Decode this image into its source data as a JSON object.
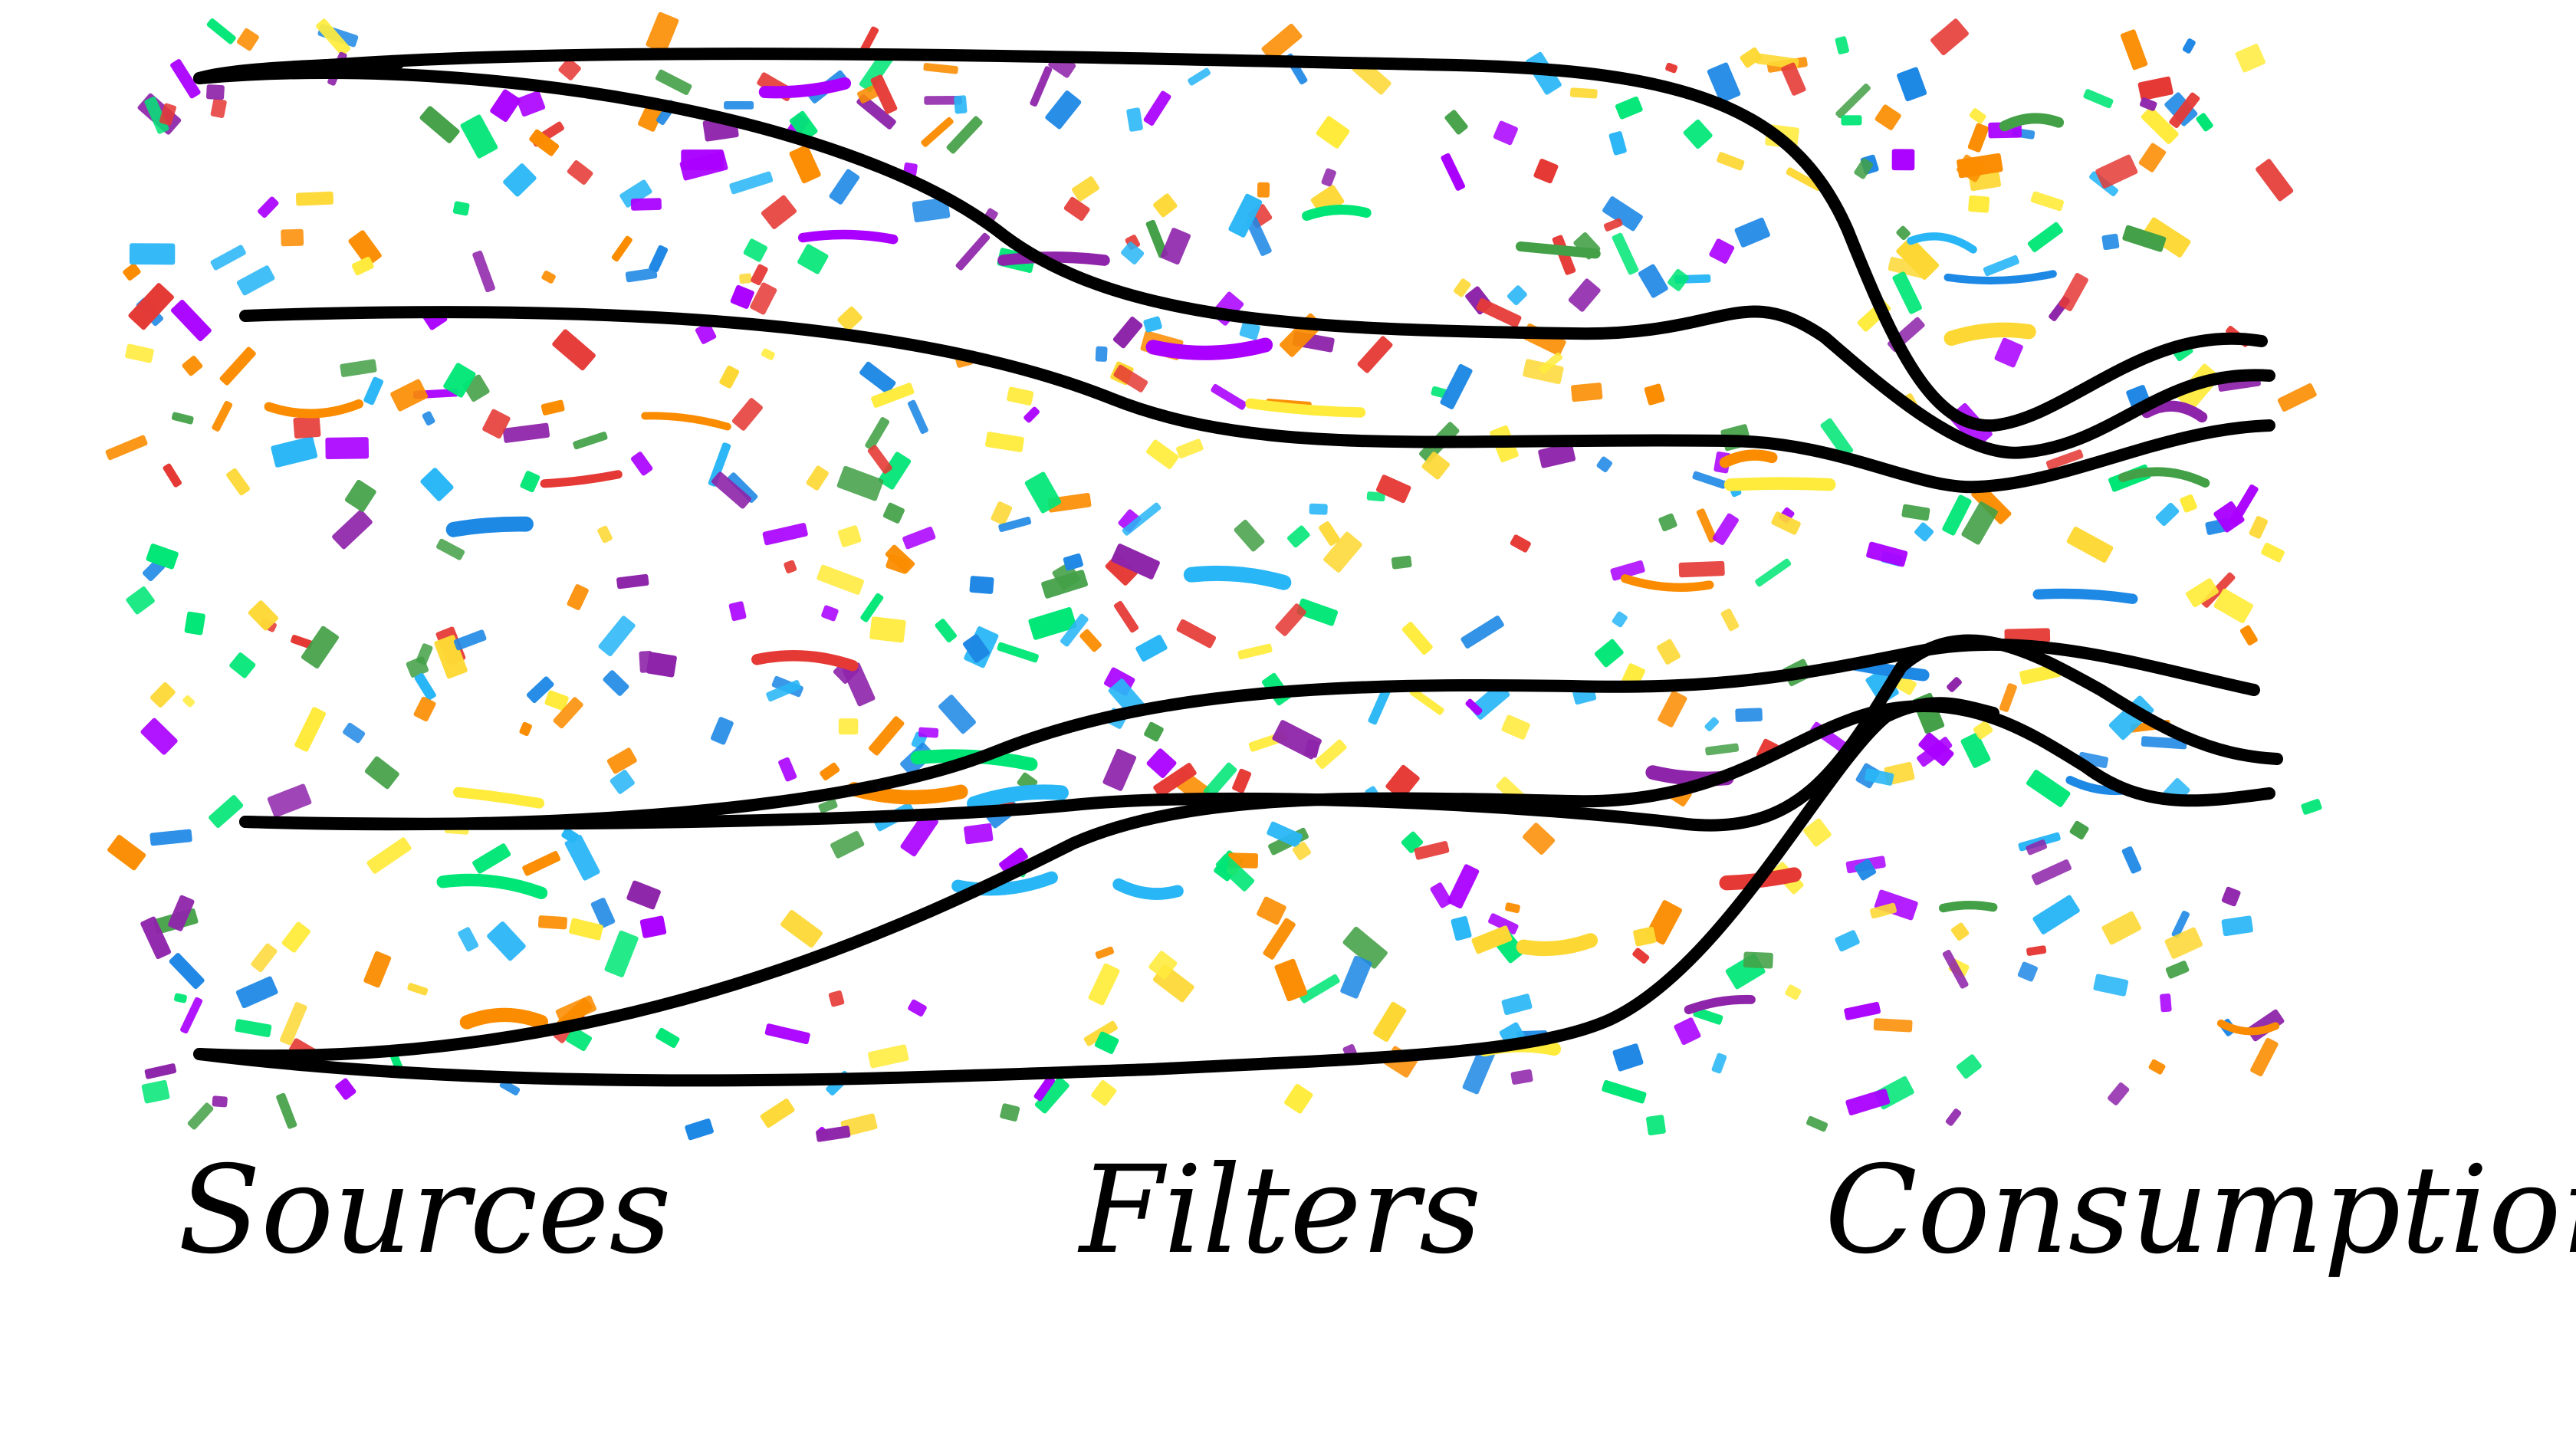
{
  "labels": {
    "sources": "Sources",
    "filters": "Filters",
    "consumption": "Consumption"
  },
  "colors": {
    "background": "#ffffff",
    "stream_line": "#000000",
    "confetti": [
      "#e53935",
      "#fb8c00",
      "#fdd835",
      "#43a047",
      "#1e88e5",
      "#8e24aa",
      "#29b6f6",
      "#ffeb3b",
      "#00e676",
      "#aa00ff"
    ]
  },
  "streams": [
    {
      "id": "stream-1"
    },
    {
      "id": "stream-2"
    },
    {
      "id": "stream-3"
    },
    {
      "id": "stream-4"
    },
    {
      "id": "stream-5"
    },
    {
      "id": "stream-6"
    },
    {
      "id": "stream-7"
    },
    {
      "id": "stream-8"
    }
  ]
}
